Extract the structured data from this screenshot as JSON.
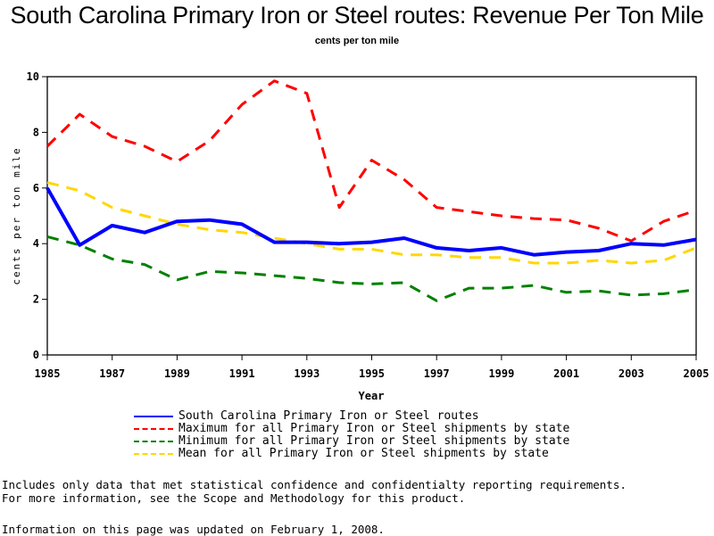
{
  "chart_data": {
    "type": "line",
    "title": "South Carolina Primary Iron or Steel routes: Revenue Per Ton Mile",
    "subtitle": "cents per ton mile",
    "xlabel": "Year",
    "ylabel": "cents per ton mile",
    "xlim": [
      1985,
      2005
    ],
    "ylim": [
      0,
      10
    ],
    "x_ticks": [
      "1985",
      "1987",
      "1989",
      "1991",
      "1993",
      "1995",
      "1997",
      "1999",
      "2001",
      "2003",
      "2005"
    ],
    "y_ticks": [
      "0",
      "2",
      "4",
      "6",
      "8",
      "10"
    ],
    "grid": false,
    "legend_position": "bottom",
    "x": [
      1985,
      1986,
      1987,
      1988,
      1989,
      1990,
      1991,
      1992,
      1993,
      1994,
      1995,
      1996,
      1997,
      1998,
      1999,
      2000,
      2001,
      2002,
      2003,
      2004,
      2005
    ],
    "series": [
      {
        "name": "South Carolina Primary Iron or Steel routes",
        "color": "#0000ff",
        "style": "solid",
        "values": [
          6.0,
          3.95,
          4.65,
          4.4,
          4.8,
          4.85,
          4.7,
          4.05,
          4.05,
          4.0,
          4.05,
          4.2,
          3.85,
          3.75,
          3.85,
          3.6,
          3.7,
          3.75,
          4.0,
          3.95,
          4.15
        ]
      },
      {
        "name": "Maximum for all Primary Iron or Steel shipments by state",
        "color": "#ff0000",
        "style": "dashed",
        "values": [
          7.5,
          8.65,
          7.85,
          7.5,
          6.95,
          7.7,
          9.0,
          9.85,
          9.4,
          5.3,
          7.0,
          6.3,
          5.3,
          5.15,
          5.0,
          4.9,
          4.85,
          4.55,
          4.1,
          4.8,
          5.2
        ]
      },
      {
        "name": "Minimum for all Primary Iron or Steel shipments by state",
        "color": "#008000",
        "style": "dashed",
        "values": [
          4.25,
          3.95,
          3.45,
          3.25,
          2.7,
          3.0,
          2.95,
          2.85,
          2.75,
          2.6,
          2.55,
          2.6,
          1.95,
          2.4,
          2.4,
          2.5,
          2.25,
          2.3,
          2.15,
          2.2,
          2.35
        ]
      },
      {
        "name": "Mean for all Primary Iron or Steel shipments by state",
        "color": "#ffd700",
        "style": "dashed",
        "values": [
          6.2,
          5.9,
          5.3,
          5.0,
          4.7,
          4.5,
          4.4,
          4.2,
          4.0,
          3.8,
          3.8,
          3.6,
          3.6,
          3.5,
          3.5,
          3.3,
          3.3,
          3.4,
          3.3,
          3.4,
          3.85
        ]
      }
    ]
  },
  "notes": {
    "line1": "Includes only data that met statistical confidence and confidentialty reporting requirements.",
    "line2": "For more information, see the Scope and Methodology for this product.",
    "updated": "Information on this page was updated on February 1, 2008."
  }
}
